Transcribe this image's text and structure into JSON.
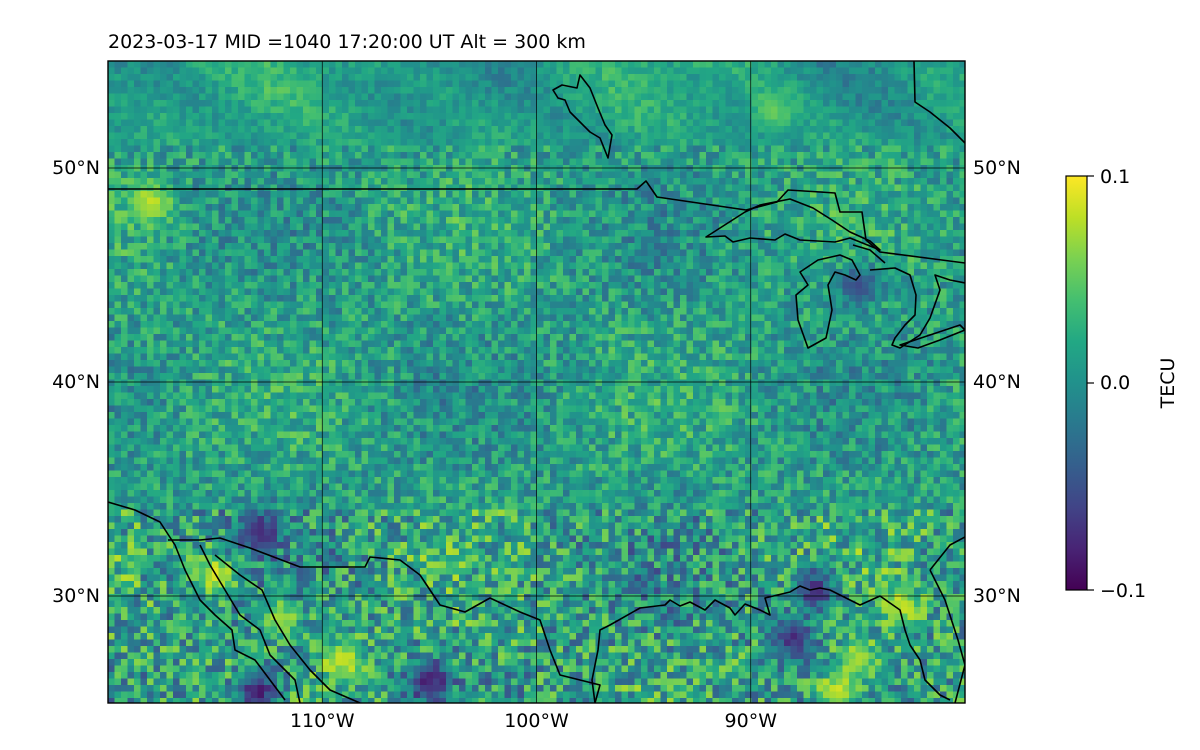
{
  "title": "2023-03-17  MID =1040    17:20:00  UT  Alt = 300 km",
  "map": {
    "projection": "equirectangular",
    "lon_range": [
      -120,
      -80
    ],
    "lat_range": [
      25,
      55
    ],
    "gridlines": true,
    "lat_labels": [
      "50°N",
      "40°N",
      "30°N"
    ],
    "lat_values": [
      50,
      40,
      30
    ],
    "lon_labels": [
      "110°W",
      "100°W",
      "90°W"
    ],
    "lon_values": [
      -110,
      -100,
      -90
    ],
    "features": [
      "coastlines",
      "country-borders",
      "great-lakes"
    ]
  },
  "field": {
    "quantity": "TECU",
    "colormap": "viridis",
    "vmin": -0.1,
    "vmax": 0.1,
    "hotspots": [
      {
        "lon": -115,
        "lat": 31,
        "value": 0.1
      },
      {
        "lon": -109,
        "lat": 27,
        "value": 0.1
      },
      {
        "lon": -112,
        "lat": 29,
        "value": 0.08
      },
      {
        "lon": -113,
        "lat": 25.5,
        "value": -0.1
      },
      {
        "lon": -105,
        "lat": 26,
        "value": -0.1
      },
      {
        "lon": -113,
        "lat": 33,
        "value": -0.09
      },
      {
        "lon": -86,
        "lat": 25.5,
        "value": 0.1
      },
      {
        "lon": -83,
        "lat": 29.5,
        "value": 0.09
      },
      {
        "lon": -85,
        "lat": 27,
        "value": 0.08
      },
      {
        "lon": -87,
        "lat": 30.3,
        "value": -0.09
      },
      {
        "lon": -88,
        "lat": 28,
        "value": -0.09
      },
      {
        "lon": -89,
        "lat": 52.7,
        "value": 0.06
      },
      {
        "lon": -118,
        "lat": 48.4,
        "value": 0.09
      },
      {
        "lon": -85,
        "lat": 44.5,
        "value": -0.07
      }
    ]
  },
  "colorbar": {
    "label": "TECU",
    "ticks": [
      0.1,
      0.0,
      -0.1
    ],
    "tick_labels": [
      "0.1",
      "0.0",
      "−0.1"
    ]
  }
}
